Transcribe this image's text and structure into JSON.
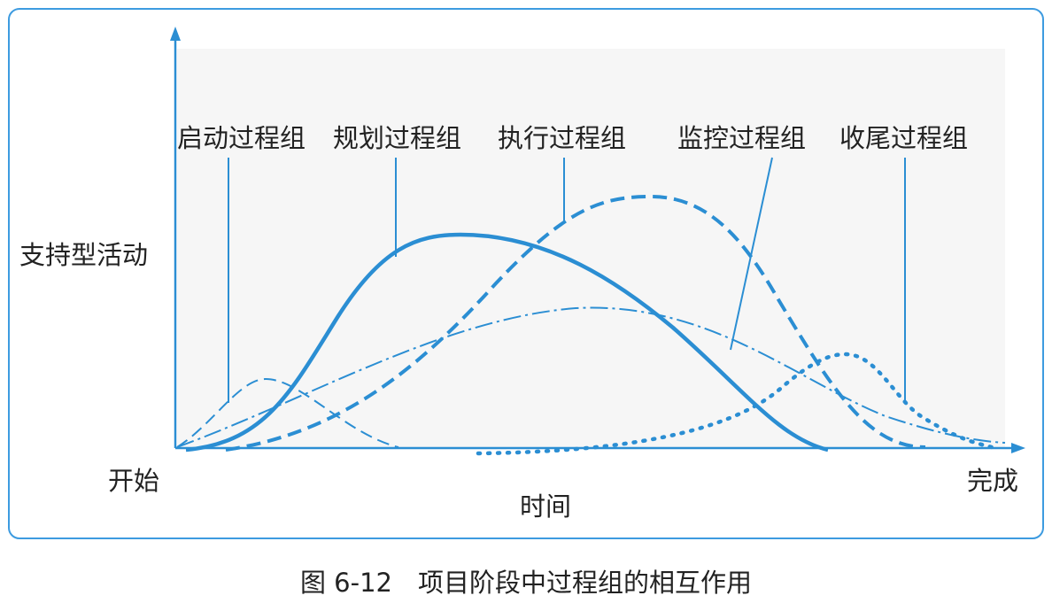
{
  "diagram": {
    "y_axis_label": "支持型活动",
    "x_axis_label": "时间",
    "x_start": "开始",
    "x_end": "完成",
    "process_groups": [
      "启动过程组",
      "规划过程组",
      "执行过程组",
      "监控过程组",
      "收尾过程组"
    ]
  },
  "caption": "图 6-12　项目阶段中过程组的相互作用"
}
